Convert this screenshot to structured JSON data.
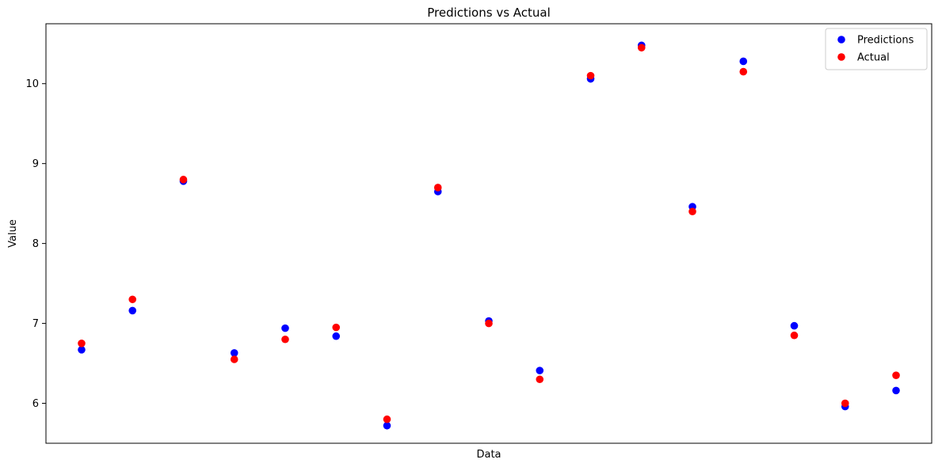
{
  "chart_data": {
    "type": "scatter",
    "title": "Predictions vs Actual",
    "xlabel": "Data",
    "ylabel": "Value",
    "ylim": [
      5.5,
      10.75
    ],
    "xlim": [
      -0.7,
      16.7
    ],
    "yticks": [
      6,
      7,
      8,
      9,
      10
    ],
    "xticks_visible": false,
    "grid": false,
    "legend_position": "top-right",
    "x": [
      0,
      1,
      2,
      3,
      4,
      5,
      6,
      7,
      8,
      9,
      10,
      11,
      12,
      13,
      14,
      15,
      16
    ],
    "series": [
      {
        "name": "Predictions",
        "color": "#0000ff",
        "values": [
          6.67,
          7.16,
          8.78,
          6.63,
          6.94,
          6.84,
          5.72,
          8.65,
          7.03,
          6.41,
          10.06,
          10.48,
          8.46,
          10.28,
          6.97,
          5.96,
          6.16
        ]
      },
      {
        "name": "Actual",
        "color": "#ff0000",
        "values": [
          6.75,
          7.3,
          8.8,
          6.55,
          6.8,
          6.95,
          5.8,
          8.7,
          7.0,
          6.3,
          10.1,
          10.45,
          8.4,
          10.15,
          6.85,
          6.0,
          6.35
        ]
      }
    ]
  }
}
